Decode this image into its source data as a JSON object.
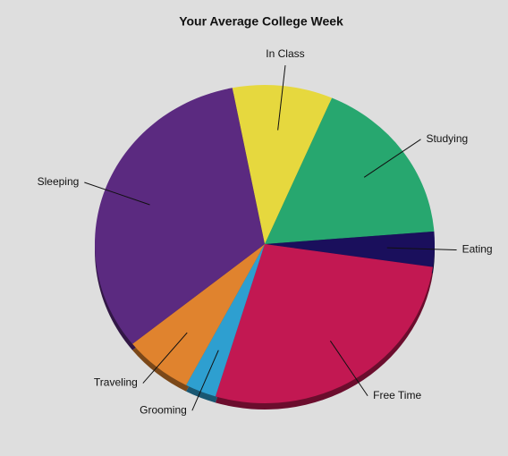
{
  "chart_data": {
    "type": "pie",
    "title": "Your Average College Week",
    "categories": [
      "In Class",
      "Studying",
      "Eating",
      "Free Time",
      "Grooming",
      "Traveling",
      "Sleeping"
    ],
    "values": [
      16,
      29,
      6,
      46,
      5,
      11,
      55
    ],
    "colors": [
      "#e6d83e",
      "#27a76f",
      "#1a0f5c",
      "#c21852",
      "#2e9fd0",
      "#e0832e",
      "#5b2a80"
    ]
  }
}
